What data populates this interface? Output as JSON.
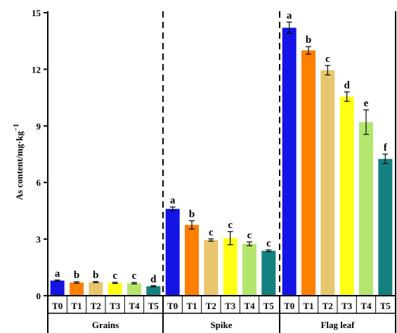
{
  "chart_data": {
    "type": "bar",
    "ylabel": "As content/mg·kg",
    "ylabel_exp": "−1",
    "ylim": [
      0,
      15
    ],
    "yticks": [
      "0",
      "3",
      "6",
      "9",
      "12",
      "15"
    ],
    "grid": false,
    "legend": "none",
    "treatments": [
      "T0",
      "T1",
      "T2",
      "T3",
      "T4",
      "T5"
    ],
    "treatment_colors": [
      "#1414e6",
      "#ff7f00",
      "#e8c66e",
      "#ffff14",
      "#b4e66e",
      "#148080"
    ],
    "groups": [
      {
        "name": "Grains",
        "values": [
          0.8,
          0.7,
          0.72,
          0.68,
          0.66,
          0.5
        ],
        "errors": [
          0.03,
          0.04,
          0.03,
          0.03,
          0.04,
          0.03
        ],
        "letters": [
          "a",
          "b",
          "b",
          "c",
          "c",
          "d"
        ]
      },
      {
        "name": "Spike",
        "values": [
          4.6,
          3.75,
          2.95,
          3.05,
          2.75,
          2.38
        ],
        "errors": [
          0.1,
          0.22,
          0.06,
          0.35,
          0.1,
          0.05
        ],
        "letters": [
          "a",
          "b",
          "c",
          "c",
          "c",
          "c"
        ]
      },
      {
        "name": "Flag leaf",
        "values": [
          14.2,
          13.0,
          11.95,
          10.55,
          9.2,
          7.25
        ],
        "errors": [
          0.3,
          0.2,
          0.25,
          0.25,
          0.65,
          0.25
        ],
        "letters": [
          "a",
          "b",
          "c",
          "d",
          "e",
          "f"
        ]
      }
    ]
  }
}
